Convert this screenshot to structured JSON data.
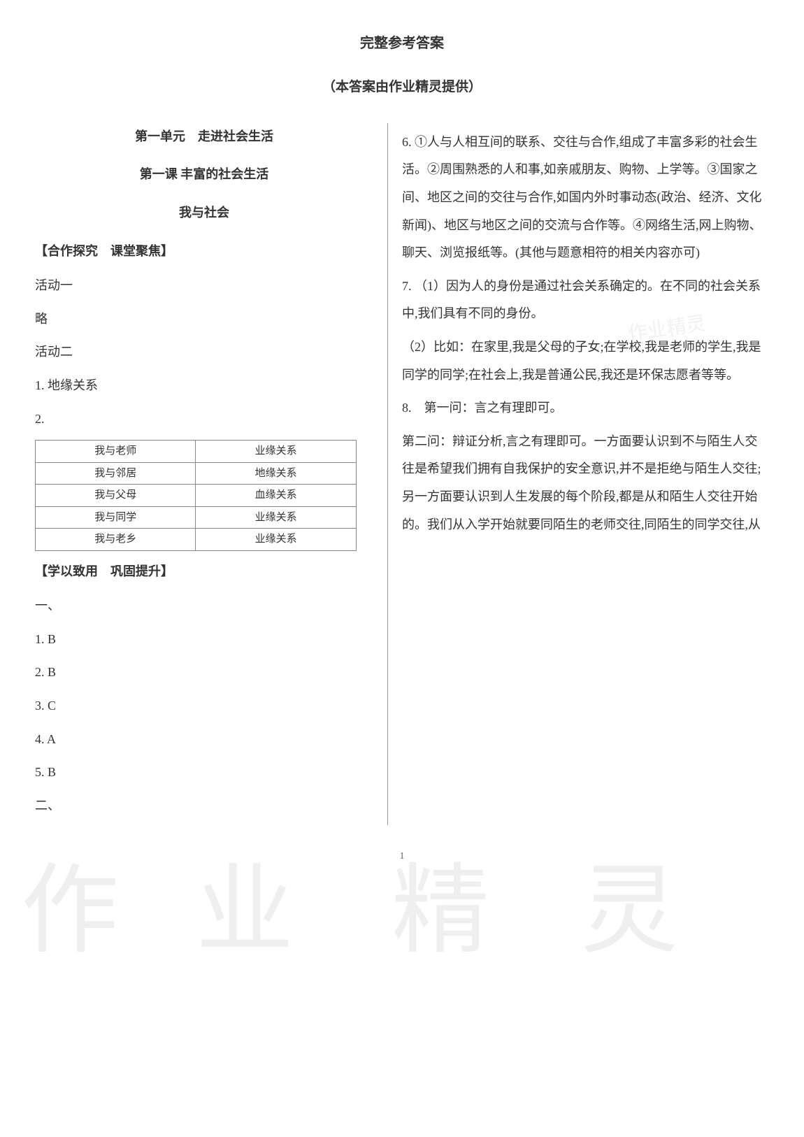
{
  "header": {
    "title": "完整参考答案",
    "subtitle": "（本答案由作业精灵提供）"
  },
  "left": {
    "unit": "第一单元　走进社会生活",
    "lesson": "第一课 丰富的社会生活",
    "section": "我与社会",
    "coop_heading": "【合作探究　课堂聚焦】",
    "activity1": "活动一",
    "skip": "略",
    "activity2": "活动二",
    "q1": "1. 地缘关系",
    "q2_label": "2.",
    "table": {
      "rows": [
        [
          "我与老师",
          "业缘关系"
        ],
        [
          "我与邻居",
          "地缘关系"
        ],
        [
          "我与父母",
          "血缘关系"
        ],
        [
          "我与同学",
          "业缘关系"
        ],
        [
          "我与老乡",
          "业缘关系"
        ]
      ]
    },
    "apply_heading": "【学以致用　巩固提升】",
    "section_one": "一、",
    "answers": [
      "1. B",
      "2. B",
      "3. C",
      "4. A",
      "5. B"
    ],
    "section_two": "二、"
  },
  "right": {
    "q6": "6. ①人与人相互间的联系、交往与合作,组成了丰富多彩的社会生活。②周围熟悉的人和事,如亲戚朋友、购物、上学等。③国家之间、地区之间的交往与合作,如国内外时事动态(政治、经济、文化新闻)、地区与地区之间的交流与合作等。④网络生活,网上购物、聊天、浏览报纸等。(其他与题意相符的相关内容亦可)",
    "q7_1": "7. （1）因为人的身份是通过社会关系确定的。在不同的社会关系中,我们具有不同的身份。",
    "q7_2": "（2）比如：在家里,我是父母的子女;在学校,我是老师的学生,我是同学的同学;在社会上,我是普通公民,我还是环保志愿者等等。",
    "q8_1": "8.　第一问：言之有理即可。",
    "q8_2": "第二问：辩证分析,言之有理即可。一方面要认识到不与陌生人交往是希望我们拥有自我保护的安全意识,并不是拒绝与陌生人交往;另一方面要认识到人生发展的每个阶段,都是从和陌生人交往开始的。我们从入学开始就要同陌生的老师交往,同陌生的同学交往,从"
  },
  "watermarks": {
    "w1": "作",
    "w2": "业",
    "w3": "精",
    "w4": "灵",
    "stamp": "作业精灵"
  },
  "page_number": "1"
}
